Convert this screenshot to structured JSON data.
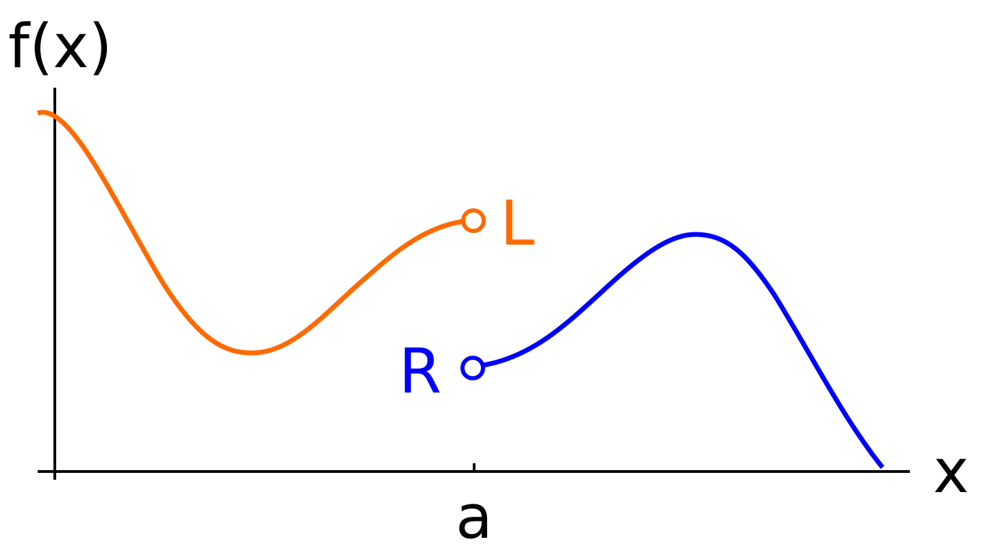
{
  "axes": {
    "y_label": "f(x)",
    "x_label": "x",
    "tick_label": "a"
  },
  "points": {
    "left_label": "L",
    "right_label": "R"
  }
}
